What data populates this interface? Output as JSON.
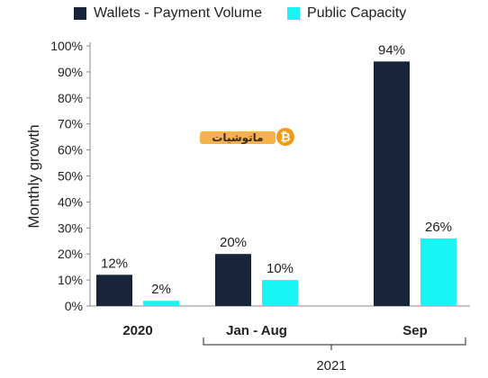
{
  "chart_data": {
    "type": "bar",
    "ylabel": "Monthly growth",
    "ylim": [
      0,
      100
    ],
    "yticks": [
      "0%",
      "10%",
      "20%",
      "30%",
      "40%",
      "50%",
      "60%",
      "70%",
      "80%",
      "90%",
      "100%"
    ],
    "categories": [
      "2020",
      "Jan - Aug",
      "Sep"
    ],
    "group_label": "2021",
    "series": [
      {
        "name": "Wallets - Payment Volume",
        "color": "#17243a",
        "values": [
          12,
          20,
          94
        ],
        "labels": [
          "12%",
          "20%",
          "94%"
        ]
      },
      {
        "name": "Public Capacity",
        "color": "#19f5f5",
        "values": [
          2,
          10,
          26
        ],
        "labels": [
          "2%",
          "10%",
          "26%"
        ]
      }
    ],
    "legend_position": "top",
    "grid": false
  },
  "watermark": {
    "text": "ماتوشيات",
    "icon": "bitcoin-icon"
  }
}
